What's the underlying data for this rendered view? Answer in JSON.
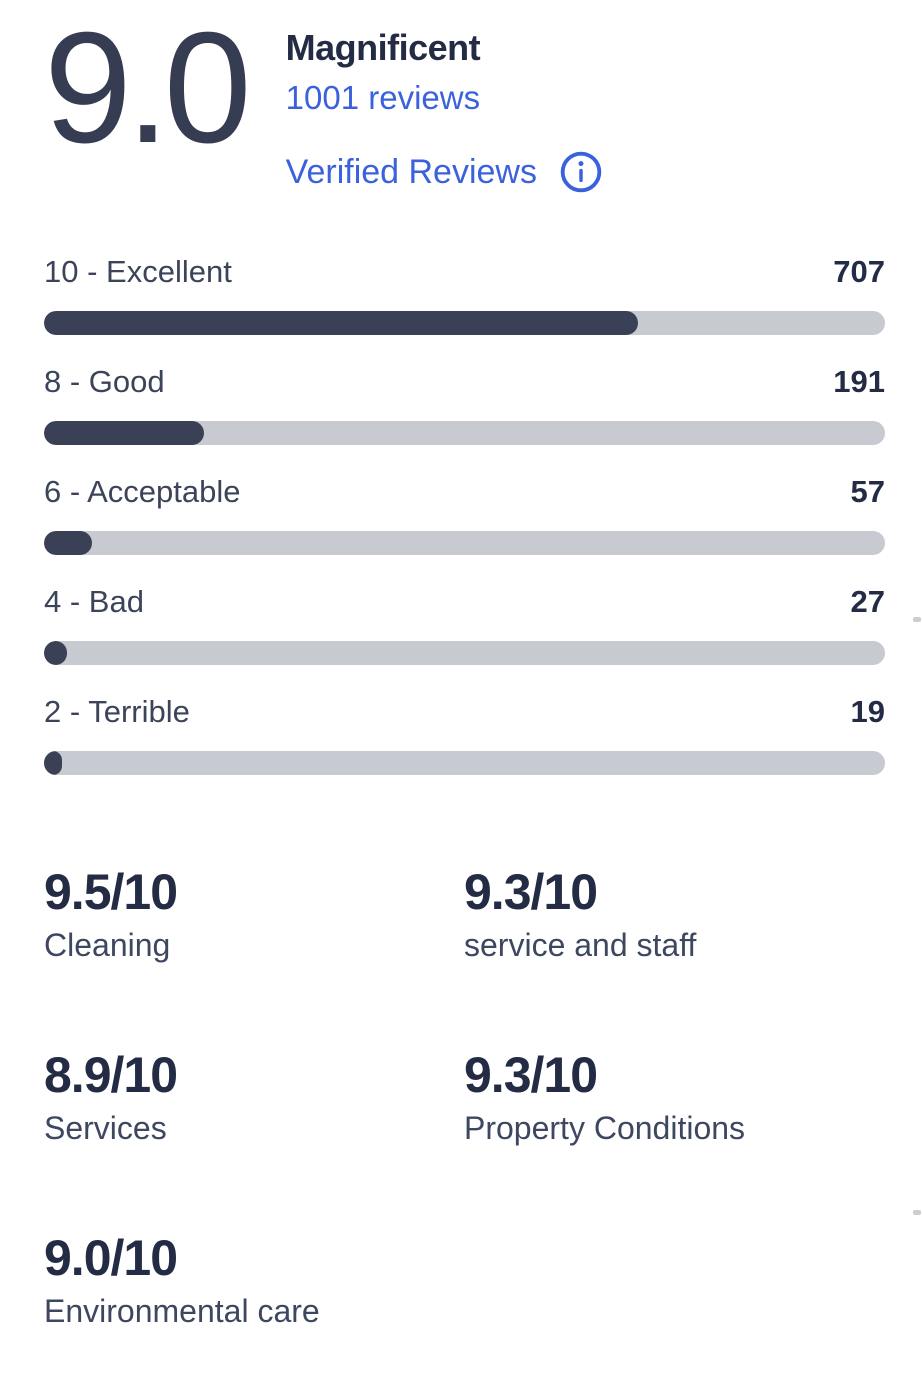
{
  "colors": {
    "blue": "#3b62dc",
    "heading-dark": "#232c44",
    "score-dark": "#363d52",
    "slate": "#3c4459",
    "cat-label": "#3e4760",
    "fill": "#3a4157",
    "track": "#c8cad1"
  },
  "header": {
    "score": "9.0",
    "label": "Magnificent",
    "reviews_link": "1001 reviews",
    "verified_link": "Verified Reviews",
    "info_icon": "info-icon"
  },
  "ratings": {
    "total": 1001,
    "rows": [
      {
        "label": "10 - Excellent",
        "count": 707
      },
      {
        "label": "8 - Good",
        "count": 191
      },
      {
        "label": "6 - Acceptable",
        "count": 57
      },
      {
        "label": "4 - Bad",
        "count": 27
      },
      {
        "label": "2 - Terrible",
        "count": 19
      }
    ]
  },
  "categories": [
    {
      "score": "9.5/10",
      "label": "Cleaning"
    },
    {
      "score": "9.3/10",
      "label": "service and staff"
    },
    {
      "score": "8.9/10",
      "label": "Services"
    },
    {
      "score": "9.3/10",
      "label": "Property Conditions"
    },
    {
      "score": "9.0/10",
      "label": "Environmental care"
    }
  ],
  "chart_data": {
    "type": "bar",
    "orientation": "horizontal",
    "title": "Review score distribution",
    "categories": [
      "10 - Excellent",
      "8 - Good",
      "6 - Acceptable",
      "4 - Bad",
      "2 - Terrible"
    ],
    "values": [
      707,
      191,
      57,
      27,
      19
    ],
    "total": 1001,
    "xlim": [
      0,
      1001
    ]
  }
}
